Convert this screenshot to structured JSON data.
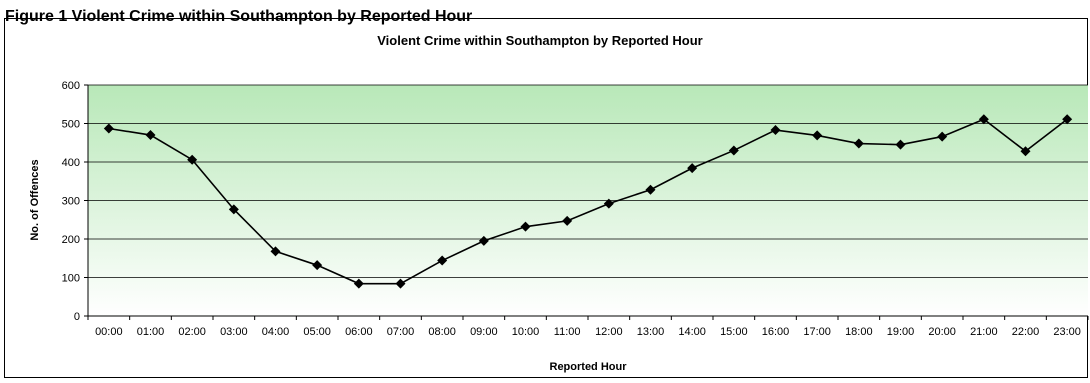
{
  "figure_caption": "Figure 1 Violent Crime within Southampton by Reported Hour",
  "colors": {
    "plot_top": "#b8e8b8",
    "plot_bottom": "#ffffff",
    "series": "#000000",
    "grid": "#000000"
  },
  "chart_data": {
    "type": "line",
    "title": "Violent Crime within Southampton by Reported Hour",
    "xlabel": "Reported Hour",
    "ylabel": "No. of Offences",
    "ylim": [
      0,
      600
    ],
    "yticks": [
      0,
      100,
      200,
      300,
      400,
      500,
      600
    ],
    "grid": true,
    "legend": "none",
    "marker": "diamond",
    "categories": [
      "00:00",
      "01:00",
      "02:00",
      "03:00",
      "04:00",
      "05:00",
      "06:00",
      "07:00",
      "08:00",
      "09:00",
      "10:00",
      "11:00",
      "12:00",
      "13:00",
      "14:00",
      "15:00",
      "16:00",
      "17:00",
      "18:00",
      "19:00",
      "20:00",
      "21:00",
      "22:00",
      "23:00"
    ],
    "series": [
      {
        "values": [
          487,
          470,
          406,
          277,
          168,
          132,
          84,
          84,
          144,
          195,
          232,
          247,
          292,
          328,
          384,
          430,
          483,
          469,
          448,
          445,
          466,
          511,
          428,
          511
        ]
      }
    ]
  }
}
